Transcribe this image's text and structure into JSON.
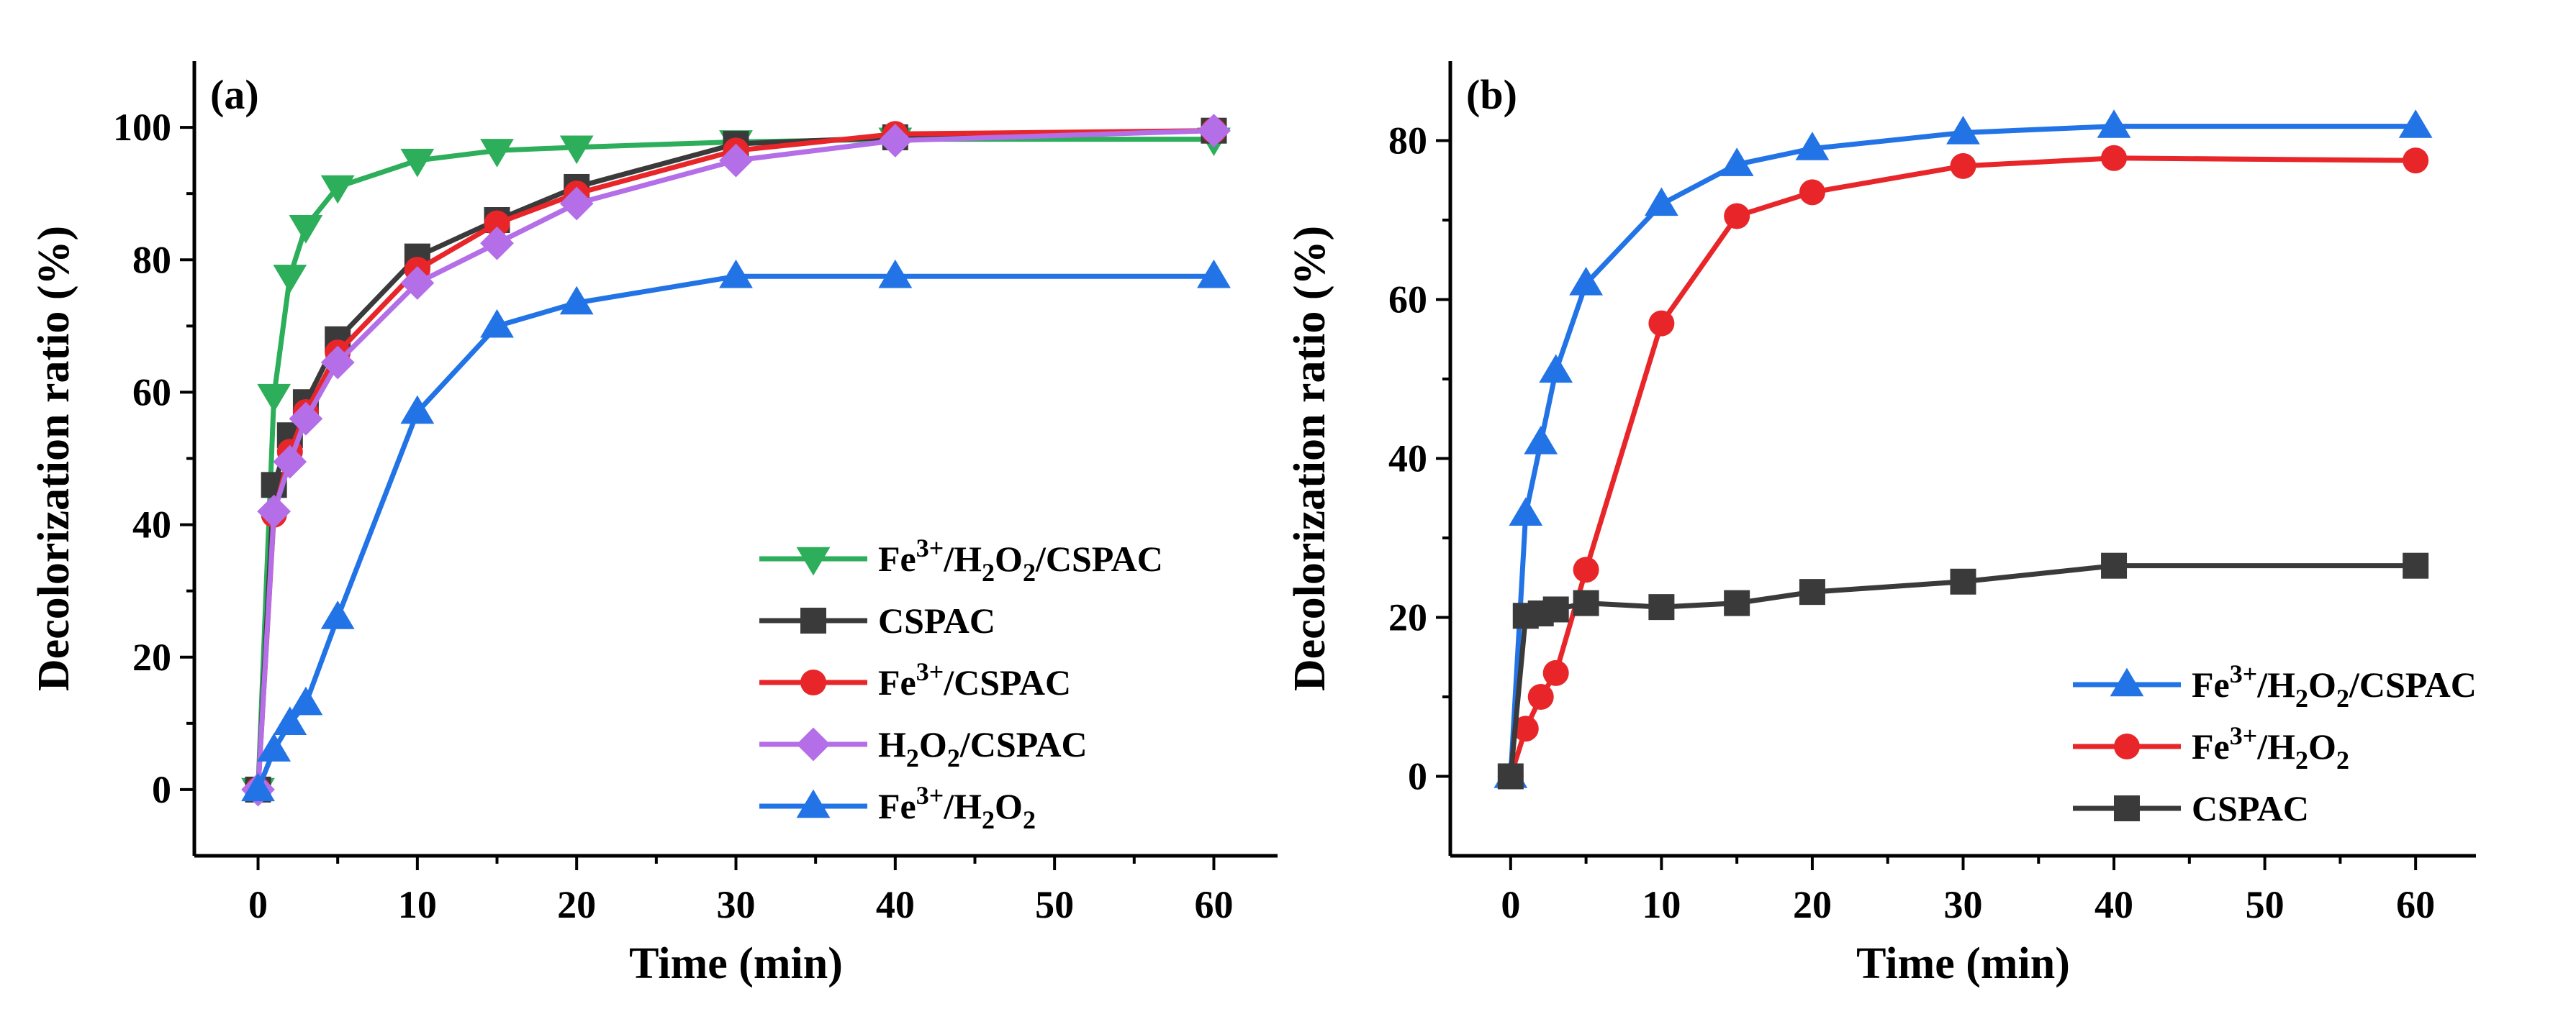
{
  "colors": {
    "green": "#2CAE5A",
    "black": "#3A3A3A",
    "red": "#E8262A",
    "purple": "#B36EE8",
    "blue": "#2273E6"
  },
  "chart_data": [
    {
      "type": "line",
      "panel_label": "(a)",
      "xlabel": "Time (min)",
      "ylabel": "Decolorization ratio (%)",
      "xlim": [
        -4,
        64
      ],
      "ylim": [
        -10,
        110
      ],
      "xticks": [
        0,
        10,
        20,
        30,
        40,
        50,
        60
      ],
      "yticks": [
        0,
        20,
        40,
        60,
        80,
        100
      ],
      "legend_position": "bottom-right",
      "series": [
        {
          "name": "Fe3+/H2O2/CSPAC",
          "label_parts": [
            "Fe",
            "3+",
            "/H",
            "2",
            "O",
            "2",
            "/CSPAC"
          ],
          "color": "#2CAE5A",
          "marker": "triangle-down",
          "x": [
            0,
            1,
            2,
            3,
            5,
            10,
            15,
            20,
            30,
            40,
            60
          ],
          "y": [
            0,
            59.5,
            77.5,
            85,
            91,
            95,
            96.5,
            97,
            97.8,
            98.2,
            98.2
          ]
        },
        {
          "name": "CSPAC",
          "label_parts": [
            "CSPAC"
          ],
          "color": "#3A3A3A",
          "marker": "square",
          "x": [
            0,
            1,
            2,
            3,
            5,
            10,
            15,
            20,
            30,
            40,
            60
          ],
          "y": [
            0,
            46,
            53.5,
            58.5,
            68,
            80.5,
            86,
            91,
            97.5,
            98.5,
            99.5
          ]
        },
        {
          "name": "Fe3+/CSPAC",
          "label_parts": [
            "Fe",
            "3+",
            "/CSPAC"
          ],
          "color": "#E8262A",
          "marker": "circle",
          "x": [
            0,
            1,
            2,
            3,
            5,
            10,
            15,
            20,
            30,
            40,
            60
          ],
          "y": [
            0,
            41.5,
            51,
            57,
            66,
            78.5,
            85.5,
            90,
            96.5,
            99,
            99.5
          ]
        },
        {
          "name": "H2O2/CSPAC",
          "label_parts": [
            "H",
            "2",
            "O",
            "2",
            "/CSPAC"
          ],
          "color": "#B36EE8",
          "marker": "diamond",
          "x": [
            0,
            1,
            2,
            3,
            5,
            10,
            15,
            20,
            30,
            40,
            60
          ],
          "y": [
            0,
            42,
            49.5,
            56,
            64.5,
            76.5,
            82.5,
            88.5,
            95,
            98,
            99.5
          ]
        },
        {
          "name": "Fe3+/H2O2",
          "label_parts": [
            "Fe",
            "3+",
            "/H",
            "2",
            "O",
            "2"
          ],
          "color": "#2273E6",
          "marker": "triangle-up",
          "x": [
            0,
            1,
            2,
            3,
            5,
            10,
            15,
            20,
            30,
            40,
            60
          ],
          "y": [
            0,
            6,
            10,
            13,
            26,
            57,
            70,
            73.5,
            77.5,
            77.5,
            77.5
          ]
        }
      ]
    },
    {
      "type": "line",
      "panel_label": "(b)",
      "xlabel": "Time (min)",
      "ylabel": "Decolorization ratio (%)",
      "xlim": [
        -4,
        64
      ],
      "ylim": [
        -10,
        90
      ],
      "xticks": [
        0,
        10,
        20,
        30,
        40,
        50,
        60
      ],
      "yticks": [
        0,
        20,
        40,
        60,
        80
      ],
      "legend_position": "bottom-right",
      "series": [
        {
          "name": "Fe3+/H2O2/CSPAC",
          "label_parts": [
            "Fe",
            "3+",
            "/H",
            "2",
            "O",
            "2",
            "/CSPAC"
          ],
          "color": "#2273E6",
          "marker": "triangle-up",
          "x": [
            0,
            1,
            2,
            3,
            5,
            10,
            15,
            20,
            30,
            40,
            60
          ],
          "y": [
            0,
            33,
            42,
            51,
            62,
            72,
            77,
            79,
            81,
            81.8,
            81.8
          ]
        },
        {
          "name": "Fe3+/H2O2",
          "label_parts": [
            "Fe",
            "3+",
            "/H",
            "2",
            "O",
            "2"
          ],
          "color": "#E8262A",
          "marker": "circle",
          "x": [
            0,
            1,
            2,
            3,
            5,
            10,
            15,
            20,
            30,
            40,
            60
          ],
          "y": [
            0,
            6,
            10,
            13,
            26,
            57,
            70.5,
            73.5,
            76.8,
            77.8,
            77.5
          ]
        },
        {
          "name": "CSPAC",
          "label_parts": [
            "CSPAC"
          ],
          "color": "#3A3A3A",
          "marker": "square",
          "x": [
            0,
            1,
            2,
            3,
            5,
            10,
            15,
            20,
            30,
            40,
            60
          ],
          "y": [
            0,
            20.2,
            20.5,
            21,
            21.8,
            21.3,
            21.8,
            23.2,
            24.5,
            26.5,
            26.5
          ]
        }
      ]
    }
  ]
}
